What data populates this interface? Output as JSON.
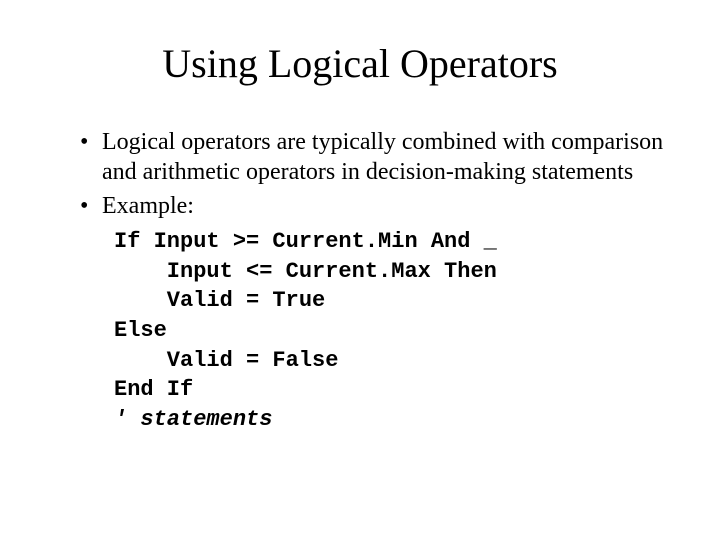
{
  "colors": {
    "background": "#ffffff",
    "text": "#000000"
  },
  "typography": {
    "title_family": "Times New Roman",
    "title_size_pt": 40,
    "body_family": "Times New Roman",
    "body_size_pt": 24,
    "code_family": "Courier New",
    "code_size_pt": 22,
    "code_weight": "bold"
  },
  "title": "Using Logical Operators",
  "bullets": [
    "Logical operators are typically combined with comparison and arithmetic operators in decision-making statements",
    "Example:"
  ],
  "code_lines": [
    "If Input >= Current.Min And _",
    "    Input <= Current.Max Then",
    "    Valid = True",
    "Else",
    "    Valid = False",
    "End If",
    "' statements"
  ],
  "code_italic_line_index": 6
}
